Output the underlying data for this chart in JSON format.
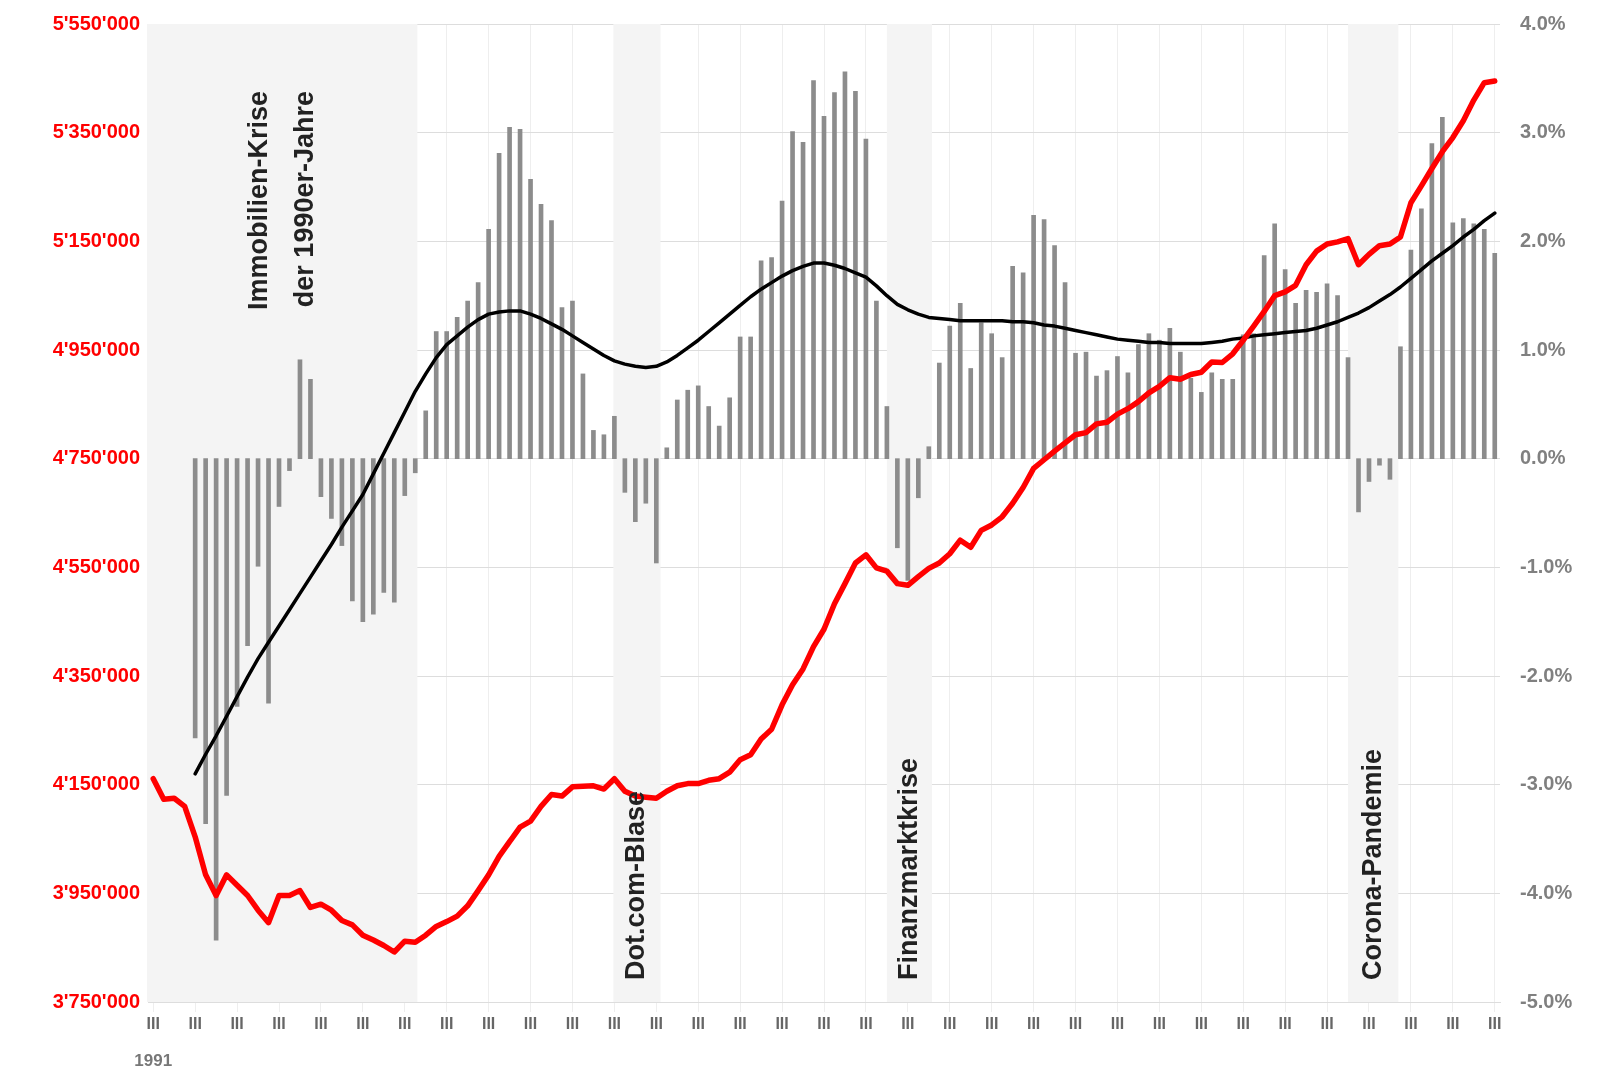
{
  "chart_data": {
    "type": "bar",
    "grid": true,
    "categories": [
      "III",
      null,
      null,
      null,
      "III",
      null,
      null,
      null,
      "III",
      null,
      null,
      null,
      "III",
      null,
      null,
      null,
      "III",
      null,
      null,
      null,
      "III",
      null,
      null,
      null,
      "III",
      null,
      null,
      null,
      "III",
      null,
      null,
      null,
      "III",
      null,
      null,
      null,
      "III",
      null,
      null,
      null,
      "III",
      null,
      null,
      null,
      "III",
      null,
      null,
      null,
      "III",
      null,
      null,
      null,
      "III",
      null,
      null,
      null,
      "III",
      null,
      null,
      null,
      "III",
      null,
      null,
      null,
      "III",
      null,
      null,
      null,
      "III",
      null,
      null,
      null,
      "III",
      null,
      null,
      null,
      "III",
      null,
      null,
      null,
      "III",
      null,
      null,
      null,
      "III",
      null,
      null,
      null,
      "III",
      null,
      null,
      null,
      "III",
      null,
      null,
      null,
      "III",
      null,
      null,
      null,
      "III",
      null,
      null,
      null,
      "III",
      null,
      null,
      null,
      "III",
      null,
      null,
      null,
      "III",
      null,
      null,
      null,
      "III",
      null,
      null,
      null,
      "III",
      null,
      null,
      null,
      "III",
      null,
      null,
      null,
      "III"
    ],
    "ylim": [
      3750000,
      5550000
    ],
    "yticks": [
      {
        "value": 3750000,
        "label": "3'750'000"
      },
      {
        "value": 3950000,
        "label": "3'950'000"
      },
      {
        "value": 4150000,
        "label": "4'150'000"
      },
      {
        "value": 4350000,
        "label": "4'350'000"
      },
      {
        "value": 4550000,
        "label": "4'550'000"
      },
      {
        "value": 4750000,
        "label": "4'750'000"
      },
      {
        "value": 4950000,
        "label": "4'950'000"
      },
      {
        "value": 5150000,
        "label": "5'150'000"
      },
      {
        "value": 5350000,
        "label": "5'350'000"
      },
      {
        "value": 5550000,
        "label": "5'550'000"
      }
    ],
    "y2lim": [
      -5,
      4
    ],
    "y2ticks": [
      {
        "value": -5,
        "label": "-5.0%"
      },
      {
        "value": -4,
        "label": "-4.0%"
      },
      {
        "value": -3,
        "label": "-3.0%"
      },
      {
        "value": -2,
        "label": "-2.0%"
      },
      {
        "value": -1,
        "label": "-1.0%"
      },
      {
        "value": 0,
        "label": "0.0%"
      },
      {
        "value": 1,
        "label": "1.0%"
      },
      {
        "value": 2,
        "label": "2.0%"
      },
      {
        "value": 3,
        "label": "3.0%"
      },
      {
        "value": 4,
        "label": "4.0%"
      }
    ],
    "series": [
      {
        "axis": "y2",
        "color": "#8c8c8c",
        "values": [
          null,
          null,
          null,
          null,
          -2.57,
          -3.36,
          -4.43,
          -3.1,
          -2.28,
          -1.72,
          -0.99,
          -2.25,
          -0.44,
          -0.11,
          0.91,
          0.73,
          -0.35,
          -0.55,
          -0.8,
          -1.31,
          -1.5,
          -1.43,
          -1.23,
          -1.32,
          -0.34,
          -0.13,
          0.44,
          1.17,
          1.17,
          1.3,
          1.45,
          1.62,
          2.11,
          2.81,
          3.05,
          3.03,
          2.57,
          2.34,
          2.19,
          1.39,
          1.45,
          0.78,
          0.26,
          0.22,
          0.39,
          -0.31,
          -0.58,
          -0.41,
          -0.96,
          0.1,
          0.54,
          0.63,
          0.67,
          0.48,
          0.3,
          0.56,
          1.12,
          1.12,
          1.82,
          1.85,
          2.37,
          3.01,
          2.91,
          3.48,
          3.15,
          3.37,
          3.56,
          3.38,
          2.94,
          1.45,
          0.48,
          -0.82,
          -1.12,
          -0.36,
          0.11,
          0.88,
          1.22,
          1.43,
          0.83,
          1.25,
          1.15,
          0.93,
          1.77,
          1.71,
          2.24,
          2.2,
          1.96,
          1.62,
          0.97,
          0.98,
          0.76,
          0.81,
          0.94,
          0.79,
          1.05,
          1.15,
          1.09,
          1.2,
          0.98,
          0.74,
          0.61,
          0.79,
          0.73,
          0.73,
          1.14,
          1.15,
          1.87,
          2.16,
          1.74,
          1.43,
          1.55,
          1.53,
          1.61,
          1.5,
          0.93,
          -0.49,
          -0.21,
          -0.06,
          -0.19,
          1.03,
          1.92,
          2.3,
          2.9,
          3.14,
          2.17,
          2.21,
          2.16,
          2.11,
          1.89
        ]
      },
      {
        "type": "line",
        "axis": "y2",
        "color": "#000000",
        "values": [
          null,
          null,
          null,
          null,
          -2.9,
          -2.72,
          -2.55,
          -2.37,
          -2.19,
          -2.01,
          -1.84,
          -1.69,
          -1.54,
          -1.39,
          -1.24,
          -1.09,
          -0.94,
          -0.79,
          -0.63,
          -0.48,
          -0.33,
          -0.14,
          0.05,
          0.24,
          0.43,
          0.62,
          0.78,
          0.93,
          1.05,
          1.13,
          1.21,
          1.28,
          1.33,
          1.35,
          1.36,
          1.36,
          1.33,
          1.29,
          1.24,
          1.19,
          1.13,
          1.07,
          1.01,
          0.95,
          0.9,
          0.87,
          0.85,
          0.84,
          0.85,
          0.89,
          0.95,
          1.02,
          1.09,
          1.17,
          1.25,
          1.33,
          1.41,
          1.49,
          1.56,
          1.62,
          1.68,
          1.73,
          1.77,
          1.8,
          1.8,
          1.78,
          1.75,
          1.71,
          1.67,
          1.59,
          1.5,
          1.42,
          1.37,
          1.33,
          1.3,
          1.29,
          1.28,
          1.27,
          1.27,
          1.27,
          1.27,
          1.27,
          1.26,
          1.26,
          1.25,
          1.23,
          1.22,
          1.2,
          1.18,
          1.16,
          1.14,
          1.12,
          1.1,
          1.09,
          1.08,
          1.07,
          1.07,
          1.06,
          1.06,
          1.06,
          1.06,
          1.07,
          1.08,
          1.1,
          1.11,
          1.13,
          1.14,
          1.15,
          1.16,
          1.17,
          1.18,
          1.2,
          1.23,
          1.26,
          1.3,
          1.34,
          1.39,
          1.45,
          1.51,
          1.58,
          1.66,
          1.74,
          1.82,
          1.89,
          1.96,
          2.04,
          2.11,
          2.19,
          2.26
        ]
      },
      {
        "type": "line",
        "axis": "y",
        "color": "#ff0000",
        "values": [
          4161000,
          4123000,
          4125000,
          4110000,
          4054000,
          3984000,
          3946000,
          3984000,
          3965000,
          3946000,
          3919000,
          3896000,
          3946000,
          3946000,
          3955000,
          3924000,
          3930000,
          3919000,
          3900000,
          3892000,
          3873000,
          3864000,
          3854000,
          3842000,
          3862000,
          3860000,
          3873000,
          3889000,
          3898000,
          3908000,
          3927000,
          3955000,
          3984000,
          4018000,
          4045000,
          4072000,
          4083000,
          4110000,
          4132000,
          4129000,
          4146000,
          4147000,
          4148000,
          4142000,
          4161000,
          4138000,
          4129000,
          4127000,
          4125000,
          4138000,
          4148000,
          4152000,
          4152000,
          4158000,
          4161000,
          4173000,
          4196000,
          4205000,
          4234000,
          4252000,
          4297000,
          4334000,
          4363000,
          4404000,
          4436000,
          4483000,
          4520000,
          4558000,
          4573000,
          4549000,
          4543000,
          4520000,
          4517000,
          4533000,
          4548000,
          4558000,
          4575000,
          4600000,
          4587000,
          4618000,
          4628000,
          4643000,
          4668000,
          4697000,
          4732000,
          4748000,
          4764000,
          4779000,
          4794000,
          4798000,
          4814000,
          4817000,
          4832000,
          4842000,
          4855000,
          4871000,
          4883000,
          4899000,
          4896000,
          4905000,
          4909000,
          4928000,
          4927000,
          4943000,
          4968000,
          4994000,
          5021000,
          5050000,
          5057000,
          5069000,
          5107000,
          5132000,
          5145000,
          5149000,
          5155000,
          5107000,
          5126000,
          5142000,
          5145000,
          5158000,
          5221000,
          5252000,
          5284000,
          5315000,
          5341000,
          5372000,
          5410000,
          5442000,
          5445000
        ]
      }
    ],
    "annotations": [
      "Immobilien-Krise der 1990er-Jahre",
      "Dot.com-Blase",
      "Finanzmarktkrise",
      "Corona-Pandemie",
      "1991"
    ]
  }
}
